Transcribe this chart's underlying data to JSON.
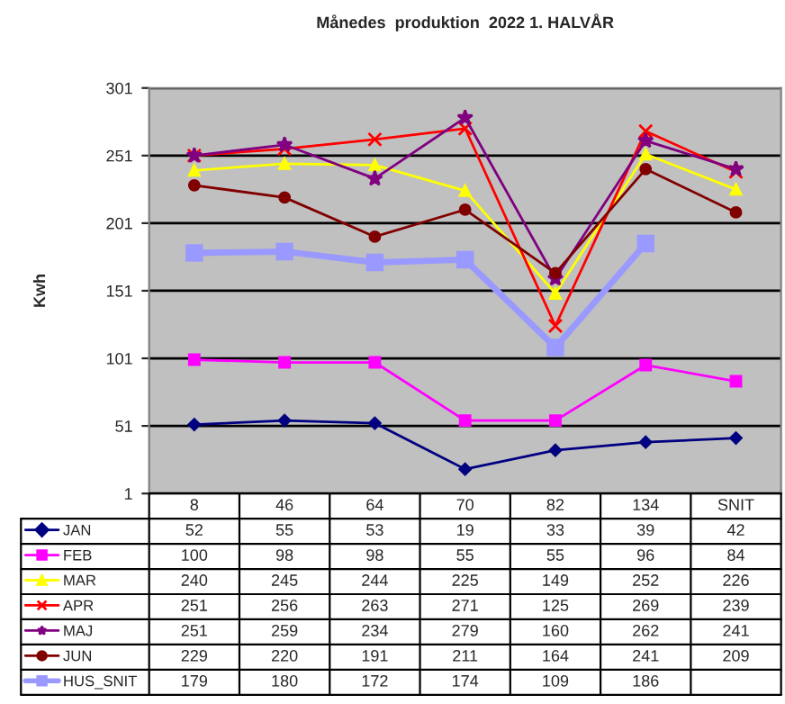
{
  "chart_data": {
    "type": "line",
    "title": "Månedes  produktion  2022 1. HALVÅR",
    "ylabel": "Kwh",
    "categories": [
      "8",
      "46",
      "64",
      "70",
      "82",
      "134",
      "SNIT"
    ],
    "ylim": [
      1,
      301
    ],
    "yticks": [
      1,
      51,
      101,
      151,
      201,
      251,
      301
    ],
    "grid": "y",
    "legend": "bottom",
    "data_labels": true,
    "series": [
      {
        "name": "JAN",
        "color": "#000080",
        "marker": "diamond",
        "values": [
          52,
          55,
          53,
          19,
          33,
          39,
          42
        ]
      },
      {
        "name": "FEB",
        "color": "#ff00ff",
        "marker": "square",
        "values": [
          100,
          98,
          98,
          55,
          55,
          96,
          84
        ]
      },
      {
        "name": "MAR",
        "color": "#ffff00",
        "marker": "triangle",
        "values": [
          240,
          245,
          244,
          225,
          149,
          252,
          226
        ]
      },
      {
        "name": "APR",
        "color": "#ff0000",
        "marker": "cross",
        "values": [
          251,
          256,
          263,
          271,
          125,
          269,
          239
        ]
      },
      {
        "name": "MAJ",
        "color": "#800080",
        "marker": "star",
        "values": [
          251,
          259,
          234,
          279,
          160,
          262,
          241
        ]
      },
      {
        "name": "JUN",
        "color": "#800000",
        "marker": "circle",
        "values": [
          229,
          220,
          191,
          211,
          164,
          241,
          209
        ]
      },
      {
        "name": "HUS_SNIT",
        "color": "#9999ff",
        "marker": "square",
        "values": [
          179,
          180,
          172,
          174,
          109,
          186,
          null
        ]
      }
    ]
  }
}
